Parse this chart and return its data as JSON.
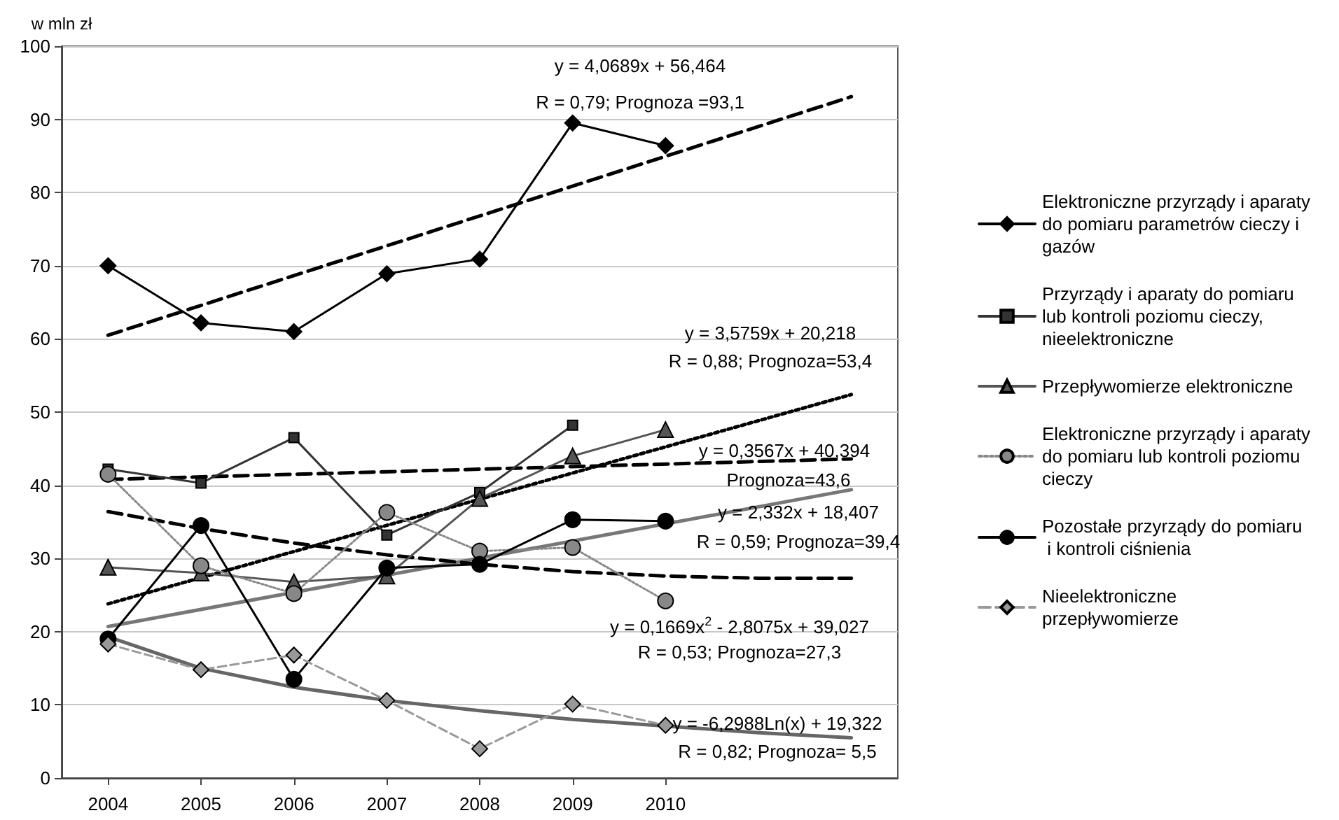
{
  "chart_data": {
    "type": "line",
    "ylabel": "w mln zł",
    "x": [
      2004,
      2005,
      2006,
      2007,
      2008,
      2009,
      2010
    ],
    "xlim": [
      2003.5,
      2012.5
    ],
    "xticks": [
      2004,
      2005,
      2006,
      2007,
      2008,
      2009,
      2010
    ],
    "ylim": [
      0,
      100
    ],
    "yticks": [
      0,
      10,
      20,
      30,
      40,
      50,
      60,
      70,
      80,
      90,
      100
    ],
    "grid": "y",
    "legend": "right",
    "series": [
      {
        "name": "Elektroniczne przyrządy i aparaty do pomiaru parametrów cieczy i gazów",
        "color": "#000000",
        "marker": "diamond",
        "line_style": "solid",
        "values": [
          70,
          62.2,
          61,
          68.9,
          70.9,
          89.5,
          86.4
        ]
      },
      {
        "name": "Przyrządy i aparaty do pomiaru lub kontroli poziomu cieczy, nieelektroniczne",
        "color": "#333333",
        "marker": "square",
        "line_style": "solid",
        "values": [
          42.2,
          40.3,
          46.5,
          33.2,
          39,
          48.2,
          null
        ]
      },
      {
        "name": "Przepływomierze elektroniczne",
        "color": "#555555",
        "marker": "triangle",
        "line_style": "solid",
        "values": [
          28.8,
          28,
          26.8,
          27.6,
          38.2,
          44,
          47.6
        ]
      },
      {
        "name": "Elektroniczne przyrządy i aparaty do pomiaru lub kontroli poziomu cieczy",
        "color": "#888888",
        "marker": "circle",
        "line_style": "dotted",
        "values": [
          41.5,
          29,
          25.2,
          36.3,
          31,
          31.5,
          24.2
        ]
      },
      {
        "name": "Pozostałe przyrządy do pomiaru i kontroli ciśnienia",
        "color": "#000000",
        "marker": "circle",
        "line_style": "solid",
        "values": [
          19,
          34.5,
          13.5,
          28.7,
          29.2,
          35.3,
          35.1
        ]
      },
      {
        "name": "Nieelektroniczne przepływomierze",
        "color": "#999999",
        "marker": "diamond",
        "line_style": "dashed",
        "values": [
          18.3,
          14.8,
          16.8,
          10.6,
          4,
          10.1,
          7.2
        ]
      },
      {
        "color": "#000000",
        "marker": "none",
        "line_style": "dashed",
        "x": [
          2004,
          2012
        ],
        "values": [
          60.5,
          93.1
        ]
      },
      {
        "color": "#000000",
        "marker": "none",
        "line_style": "dotted",
        "x": [
          2004,
          2012
        ],
        "values": [
          23.8,
          52.4
        ]
      },
      {
        "color": "#000000",
        "marker": "none",
        "line_style": "dashed",
        "x": [
          2004,
          2012
        ],
        "values": [
          40.8,
          43.6
        ]
      },
      {
        "color": "#777777",
        "marker": "none",
        "line_style": "solid",
        "x": [
          2004,
          2012
        ],
        "values": [
          20.7,
          39.4
        ]
      },
      {
        "color": "#000000",
        "marker": "none",
        "line_style": "dashed",
        "x": [
          2004,
          2005,
          2006,
          2007,
          2008,
          2009,
          2010,
          2011,
          2012
        ],
        "values": [
          36.4,
          34.1,
          32.1,
          30.5,
          29.2,
          28.2,
          27.6,
          27.3,
          27.3
        ]
      },
      {
        "color": "#666666",
        "marker": "none",
        "line_style": "solid",
        "x": [
          2004,
          2005,
          2006,
          2007,
          2008,
          2009,
          2010,
          2011,
          2012
        ],
        "values": [
          19.3,
          15,
          12.4,
          10.6,
          9.2,
          8,
          7.1,
          6.2,
          5.5
        ]
      }
    ],
    "annotations": [
      "y = 4,0689x + 56,464",
      "R = 0,79; Prognoza =93,1",
      "y = 3,5759x + 20,218",
      "R = 0,88; Prognoza=53,4",
      "y = 0,3567x + 40,394",
      "Prognoza=43,6",
      "y = 2,332x + 18,407",
      "R = 0,59; Prognoza=39,4",
      "y = 0,1669x$^{2}$ - 2,8075x + 39,027",
      "R = 0,53; Prognoza=27,3",
      "y = -6,2988Ln(x) + 19,322",
      "R = 0,82; Prognoza= 5,5"
    ]
  }
}
